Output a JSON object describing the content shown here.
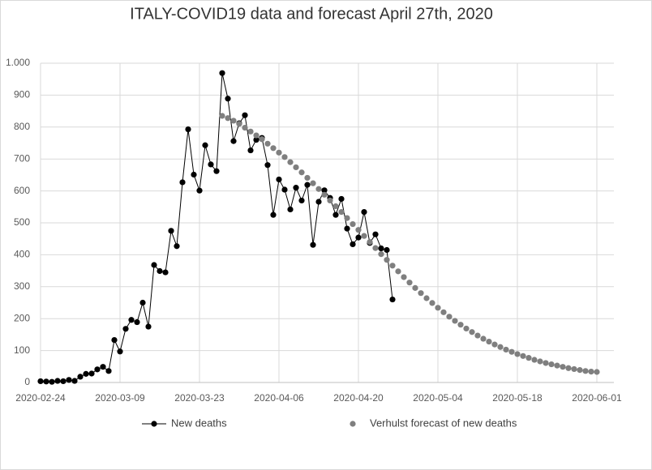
{
  "chart_data": {
    "type": "line",
    "title": "ITALY-COVID19 data and forecast  April 27th, 2020",
    "xlim": [
      "2020-02-24",
      "2020-06-04"
    ],
    "xticks": [
      "2020-02-24",
      "2020-03-09",
      "2020-03-23",
      "2020-04-06",
      "2020-04-20",
      "2020-05-04",
      "2020-05-18",
      "2020-06-01"
    ],
    "ylim": [
      0,
      1000
    ],
    "yticks": [
      0,
      100,
      200,
      300,
      400,
      500,
      600,
      700,
      800,
      900,
      {
        "value": 1000,
        "label": "1.000"
      }
    ],
    "grid": true,
    "legend": "bottom",
    "series": [
      {
        "name": "New deaths",
        "color": "#000000",
        "line": true,
        "x": [
          "2020-02-24",
          "2020-02-25",
          "2020-02-26",
          "2020-02-27",
          "2020-02-28",
          "2020-02-29",
          "2020-03-01",
          "2020-03-02",
          "2020-03-03",
          "2020-03-04",
          "2020-03-05",
          "2020-03-06",
          "2020-03-07",
          "2020-03-08",
          "2020-03-09",
          "2020-03-10",
          "2020-03-11",
          "2020-03-12",
          "2020-03-13",
          "2020-03-14",
          "2020-03-15",
          "2020-03-16",
          "2020-03-17",
          "2020-03-18",
          "2020-03-19",
          "2020-03-20",
          "2020-03-21",
          "2020-03-22",
          "2020-03-23",
          "2020-03-24",
          "2020-03-25",
          "2020-03-26",
          "2020-03-27",
          "2020-03-28",
          "2020-03-29",
          "2020-03-30",
          "2020-03-31",
          "2020-04-01",
          "2020-04-02",
          "2020-04-03",
          "2020-04-04",
          "2020-04-05",
          "2020-04-06",
          "2020-04-07",
          "2020-04-08",
          "2020-04-09",
          "2020-04-10",
          "2020-04-11",
          "2020-04-12",
          "2020-04-13",
          "2020-04-14",
          "2020-04-15",
          "2020-04-16",
          "2020-04-17",
          "2020-04-18",
          "2020-04-19",
          "2020-04-20",
          "2020-04-21",
          "2020-04-22",
          "2020-04-23",
          "2020-04-24",
          "2020-04-25",
          "2020-04-26"
        ],
        "values": [
          4,
          3,
          2,
          5,
          4,
          8,
          5,
          18,
          27,
          28,
          41,
          49,
          36,
          133,
          97,
          168,
          196,
          189,
          250,
          175,
          368,
          349,
          345,
          475,
          427,
          627,
          793,
          651,
          601,
          743,
          683,
          662,
          969,
          889,
          756,
          812,
          837,
          727,
          760,
          766,
          681,
          525,
          636,
          604,
          542,
          610,
          570,
          619,
          431,
          566,
          602,
          578,
          525,
          575,
          482,
          433,
          454,
          534,
          437,
          464,
          420,
          415,
          260
        ]
      },
      {
        "name": "Verhulst forecast of new deaths",
        "color": "#7f7f7f",
        "line": false,
        "x": [
          "2020-03-27",
          "2020-03-28",
          "2020-03-29",
          "2020-03-30",
          "2020-03-31",
          "2020-04-01",
          "2020-04-02",
          "2020-04-03",
          "2020-04-04",
          "2020-04-05",
          "2020-04-06",
          "2020-04-07",
          "2020-04-08",
          "2020-04-09",
          "2020-04-10",
          "2020-04-11",
          "2020-04-12",
          "2020-04-13",
          "2020-04-14",
          "2020-04-15",
          "2020-04-16",
          "2020-04-17",
          "2020-04-18",
          "2020-04-19",
          "2020-04-20",
          "2020-04-21",
          "2020-04-22",
          "2020-04-23",
          "2020-04-24",
          "2020-04-25",
          "2020-04-26",
          "2020-04-27",
          "2020-04-28",
          "2020-04-29",
          "2020-04-30",
          "2020-05-01",
          "2020-05-02",
          "2020-05-03",
          "2020-05-04",
          "2020-05-05",
          "2020-05-06",
          "2020-05-07",
          "2020-05-08",
          "2020-05-09",
          "2020-05-10",
          "2020-05-11",
          "2020-05-12",
          "2020-05-13",
          "2020-05-14",
          "2020-05-15",
          "2020-05-16",
          "2020-05-17",
          "2020-05-18",
          "2020-05-19",
          "2020-05-20",
          "2020-05-21",
          "2020-05-22",
          "2020-05-23",
          "2020-05-24",
          "2020-05-25",
          "2020-05-26",
          "2020-05-27",
          "2020-05-28",
          "2020-05-29",
          "2020-05-30",
          "2020-05-31",
          "2020-06-01"
        ],
        "values": [
          835,
          828,
          820,
          810,
          798,
          786,
          774,
          762,
          748,
          734,
          720,
          706,
          690,
          674,
          658,
          641,
          624,
          606,
          588,
          570,
          552,
          534,
          515,
          496,
          478,
          459,
          440,
          421,
          402,
          384,
          366,
          348,
          330,
          313,
          296,
          280,
          264,
          249,
          234,
          220,
          206,
          193,
          181,
          169,
          158,
          147,
          137,
          128,
          119,
          111,
          103,
          96,
          89,
          83,
          77,
          71,
          66,
          61,
          57,
          53,
          49,
          45,
          42,
          39,
          36,
          34,
          33
        ]
      }
    ]
  }
}
